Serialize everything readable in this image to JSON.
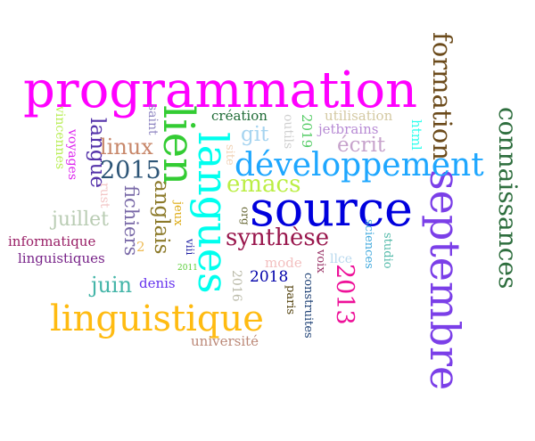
{
  "words": [
    {
      "text": "programmation",
      "color": "#ff00ff",
      "orientation": "horizontal"
    },
    {
      "text": "source",
      "color": "#0000dd",
      "orientation": "horizontal"
    },
    {
      "text": "langues",
      "color": "#00ffee",
      "orientation": "vertical"
    },
    {
      "text": "lien",
      "color": "#33cc33",
      "orientation": "vertical"
    },
    {
      "text": "septembre",
      "color": "#7b3fe8",
      "orientation": "vertical"
    },
    {
      "text": "linguistique",
      "color": "#ffbb11",
      "orientation": "horizontal"
    },
    {
      "text": "développement",
      "color": "#1ea7ff",
      "orientation": "horizontal"
    },
    {
      "text": "formation",
      "color": "#6b4a1a",
      "orientation": "vertical"
    },
    {
      "text": "connaissances",
      "color": "#2e6e3e",
      "orientation": "vertical"
    },
    {
      "text": "synthèse",
      "color": "#99174d",
      "orientation": "horizontal"
    },
    {
      "text": "2013",
      "color": "#ee1199",
      "orientation": "vertical"
    },
    {
      "text": "emacs",
      "color": "#bbee44",
      "orientation": "horizontal"
    },
    {
      "text": "anglais",
      "color": "#8c7a2a",
      "orientation": "vertical"
    },
    {
      "text": "2015",
      "color": "#2d5577",
      "orientation": "horizontal"
    },
    {
      "text": "langue",
      "color": "#5533aa",
      "orientation": "vertical"
    },
    {
      "text": "fichiers",
      "color": "#7a6aa8",
      "orientation": "vertical"
    },
    {
      "text": "linux",
      "color": "#c8876a",
      "orientation": "horizontal"
    },
    {
      "text": "juillet",
      "color": "#b9ccb3",
      "orientation": "horizontal"
    },
    {
      "text": "juin",
      "color": "#44b5a8",
      "orientation": "horizontal"
    },
    {
      "text": "git",
      "color": "#a6d4f0",
      "orientation": "horizontal"
    },
    {
      "text": "écrit",
      "color": "#c7a3cc",
      "orientation": "horizontal"
    },
    {
      "text": "création",
      "color": "#1f6b36",
      "orientation": "horizontal"
    },
    {
      "text": "utilisation",
      "color": "#d4c9a3",
      "orientation": "horizontal"
    },
    {
      "text": "jetbrains",
      "color": "#b78ad4",
      "orientation": "horizontal"
    },
    {
      "text": "html",
      "color": "#33ffee",
      "orientation": "vertical"
    },
    {
      "text": "2019",
      "color": "#55cc66",
      "orientation": "vertical"
    },
    {
      "text": "outils",
      "color": "#cfcfcf",
      "orientation": "vertical"
    },
    {
      "text": "site",
      "color": "#f0d2b6",
      "orientation": "vertical"
    },
    {
      "text": "saint",
      "color": "#8f86c2",
      "orientation": "vertical"
    },
    {
      "text": "vincennes",
      "color": "#b8ee55",
      "orientation": "vertical"
    },
    {
      "text": "voyages",
      "color": "#dd22ee",
      "orientation": "vertical"
    },
    {
      "text": "rust",
      "color": "#f3c6c6",
      "orientation": "vertical"
    },
    {
      "text": "informatique",
      "color": "#991f66",
      "orientation": "horizontal"
    },
    {
      "text": "linguistiques",
      "color": "#772288",
      "orientation": "horizontal"
    },
    {
      "text": "2",
      "color": "#eebb55",
      "orientation": "horizontal"
    },
    {
      "text": "jeux",
      "color": "#ddaa11",
      "orientation": "vertical"
    },
    {
      "text": "org",
      "color": "#666633",
      "orientation": "vertical"
    },
    {
      "text": "viii",
      "color": "#1a1aa0",
      "orientation": "vertical"
    },
    {
      "text": "2011",
      "color": "#55cc33",
      "orientation": "horizontal"
    },
    {
      "text": "denis",
      "color": "#6633ee",
      "orientation": "horizontal"
    },
    {
      "text": "2016",
      "color": "#bbbbaa",
      "orientation": "vertical"
    },
    {
      "text": "2018",
      "color": "#0000aa",
      "orientation": "horizontal"
    },
    {
      "text": "mode",
      "color": "#f3c0c0",
      "orientation": "horizontal"
    },
    {
      "text": "voix",
      "color": "#993366",
      "orientation": "vertical"
    },
    {
      "text": "llce",
      "color": "#b8d8ee",
      "orientation": "horizontal"
    },
    {
      "text": "sciences",
      "color": "#44aadd",
      "orientation": "vertical"
    },
    {
      "text": "studio",
      "color": "#55bbaa",
      "orientation": "vertical"
    },
    {
      "text": "construites",
      "color": "#224477",
      "orientation": "vertical"
    },
    {
      "text": "paris",
      "color": "#554411",
      "orientation": "vertical"
    },
    {
      "text": "université",
      "color": "#bb8877",
      "orientation": "horizontal"
    }
  ]
}
